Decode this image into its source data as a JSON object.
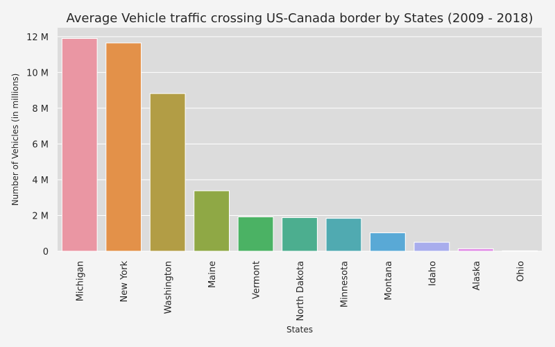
{
  "chart_data": {
    "type": "bar",
    "title": "Average Vehicle traffic crossing US-Canada border by States (2009 - 2018)",
    "xlabel": "States",
    "ylabel": "Number of Vehicles (in millions)",
    "categories": [
      "Michigan",
      "New York",
      "Washington",
      "Maine",
      "Vermont",
      "North Dakota",
      "Minnesota",
      "Montana",
      "Idaho",
      "Alaska",
      "Ohio"
    ],
    "values": [
      11.9,
      11.65,
      8.82,
      3.38,
      1.92,
      1.88,
      1.84,
      1.03,
      0.5,
      0.14,
      0.02
    ],
    "colors": [
      "#ea96a3",
      "#e39149",
      "#b29d45",
      "#8fa845",
      "#4bb264",
      "#4cae8f",
      "#50aab1",
      "#59a9d6",
      "#a8aded",
      "#e18de6",
      "#f28fc8"
    ],
    "ylim": [
      0,
      12.5
    ],
    "yticks": [
      0,
      2,
      4,
      6,
      8,
      10,
      12
    ],
    "ytick_labels": [
      "0",
      "2 M",
      "4 M",
      "6 M",
      "8 M",
      "10 M",
      "12 M"
    ],
    "grid": true,
    "legend": "none"
  }
}
